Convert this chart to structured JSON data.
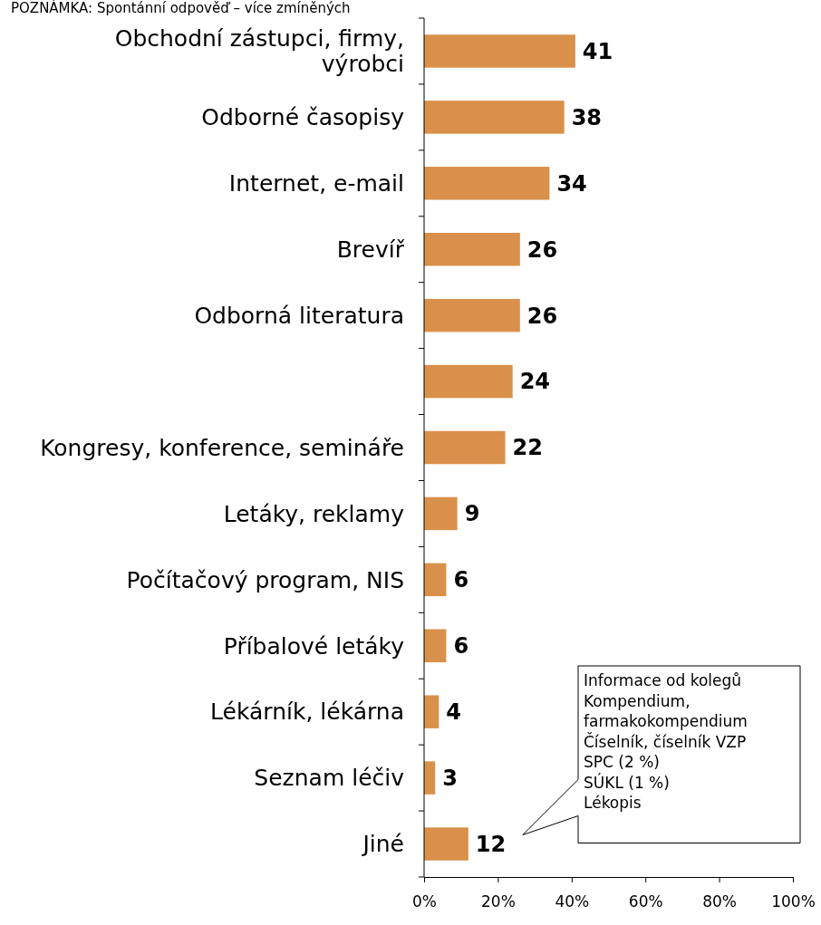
{
  "chart_data": {
    "type": "bar",
    "orientation": "horizontal",
    "subtitle": "POZNÁMKA: Spontánní odpověď – více zmíněných",
    "categories": [
      "Obchodní zástupci, firmy, výrobci",
      "Odborné časopisy",
      "Internet, e-mail",
      "Brevíř",
      "Odborná literatura",
      null,
      "Kongresy, konference, semináře",
      "Letáky, reklamy",
      "Počítačový program, NIS",
      "Příbalové letáky",
      "Lékárník, lékárna",
      "Seznam léčiv",
      "Jiné"
    ],
    "values": [
      41,
      38,
      34,
      26,
      26,
      24,
      22,
      9,
      6,
      6,
      4,
      3,
      12
    ],
    "color": "#d9904a",
    "data_labels": true,
    "xlim": [
      0,
      100
    ],
    "xticks": [
      {
        "value": 0,
        "label": "0%"
      },
      {
        "value": 20,
        "label": "20%"
      },
      {
        "value": 40,
        "label": "40%"
      },
      {
        "value": 60,
        "label": "60%"
      },
      {
        "value": 80,
        "label": "80%"
      },
      {
        "value": 100,
        "label": "100%"
      }
    ],
    "grid": false,
    "annotations": [
      "Informace od kolegů\nKompendium,\nfarmakokompendium\nČíselník, číselník VZP\nSPC (2 %)\nSÚKL (1 %)\nLékopis"
    ]
  }
}
